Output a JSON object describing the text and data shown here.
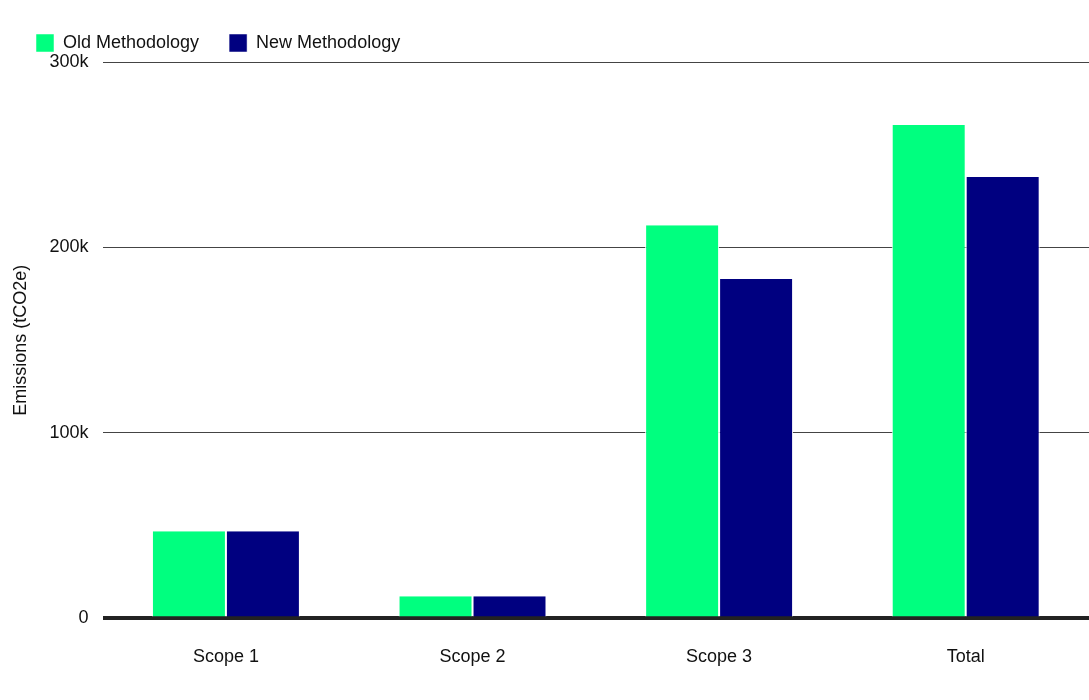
{
  "chart_data": {
    "type": "bar",
    "ylabel": "Emissions (tCO2e)",
    "categories": [
      "Scope 1",
      "Scope 2",
      "Scope 3",
      "Total"
    ],
    "series": [
      {
        "name": "Old Methodology",
        "color": "#00ff7f",
        "values": [
          47000,
          12000,
          212000,
          266000
        ]
      },
      {
        "name": "New Methodology",
        "color": "#000080",
        "values": [
          47000,
          12000,
          183000,
          238000
        ]
      }
    ],
    "ylim": [
      0,
      300000
    ],
    "yticks": [
      {
        "value": 0,
        "label": "0"
      },
      {
        "value": 100000,
        "label": "100k"
      },
      {
        "value": 200000,
        "label": "200k"
      },
      {
        "value": 300000,
        "label": "300k"
      }
    ],
    "grid": "y",
    "legend": "top left"
  }
}
